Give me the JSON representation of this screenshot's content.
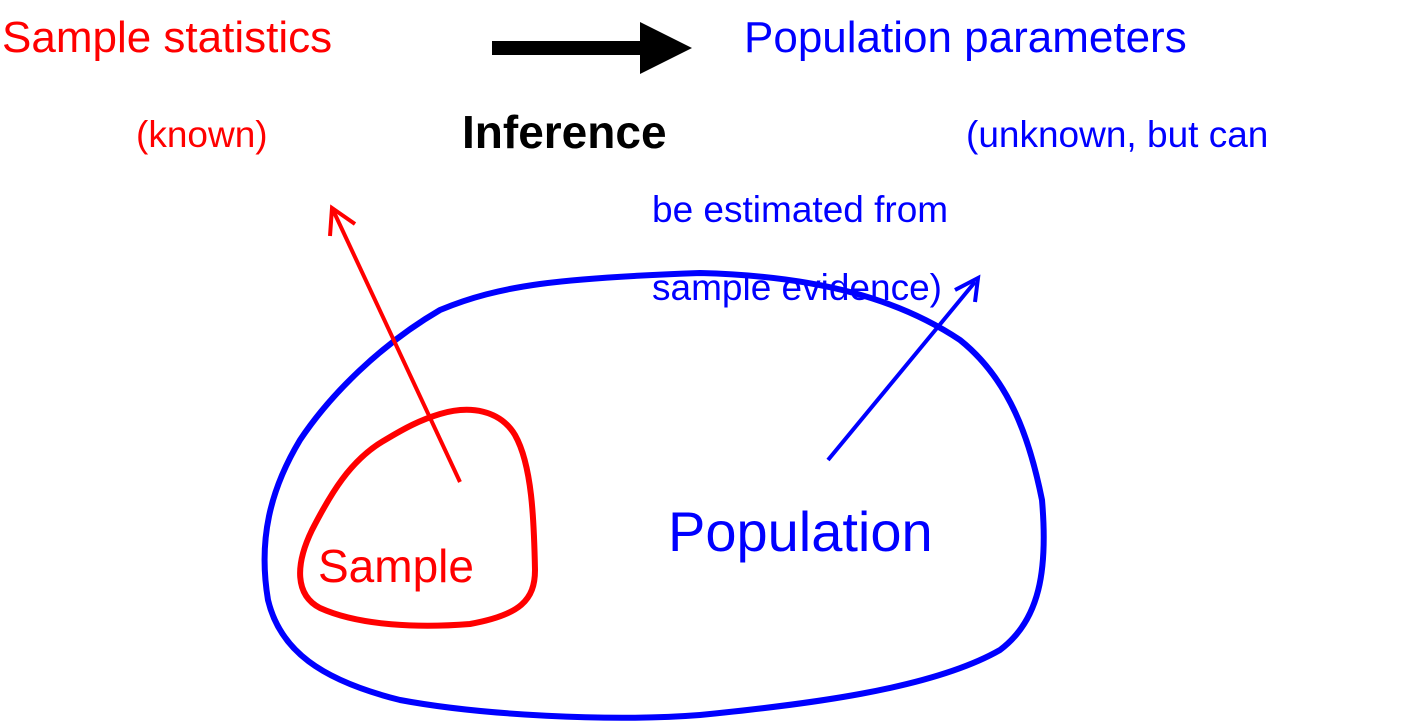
{
  "top": {
    "left": {
      "label": "Sample statistics",
      "note": "(known)"
    },
    "arrow_label": "Inference",
    "right": {
      "label": "Population parameters",
      "note_lines": [
        "(unknown, but can",
        "be estimated from",
        "sample evidence)"
      ]
    }
  },
  "population": {
    "label": "Population"
  },
  "sample": {
    "label": "Sample"
  }
}
